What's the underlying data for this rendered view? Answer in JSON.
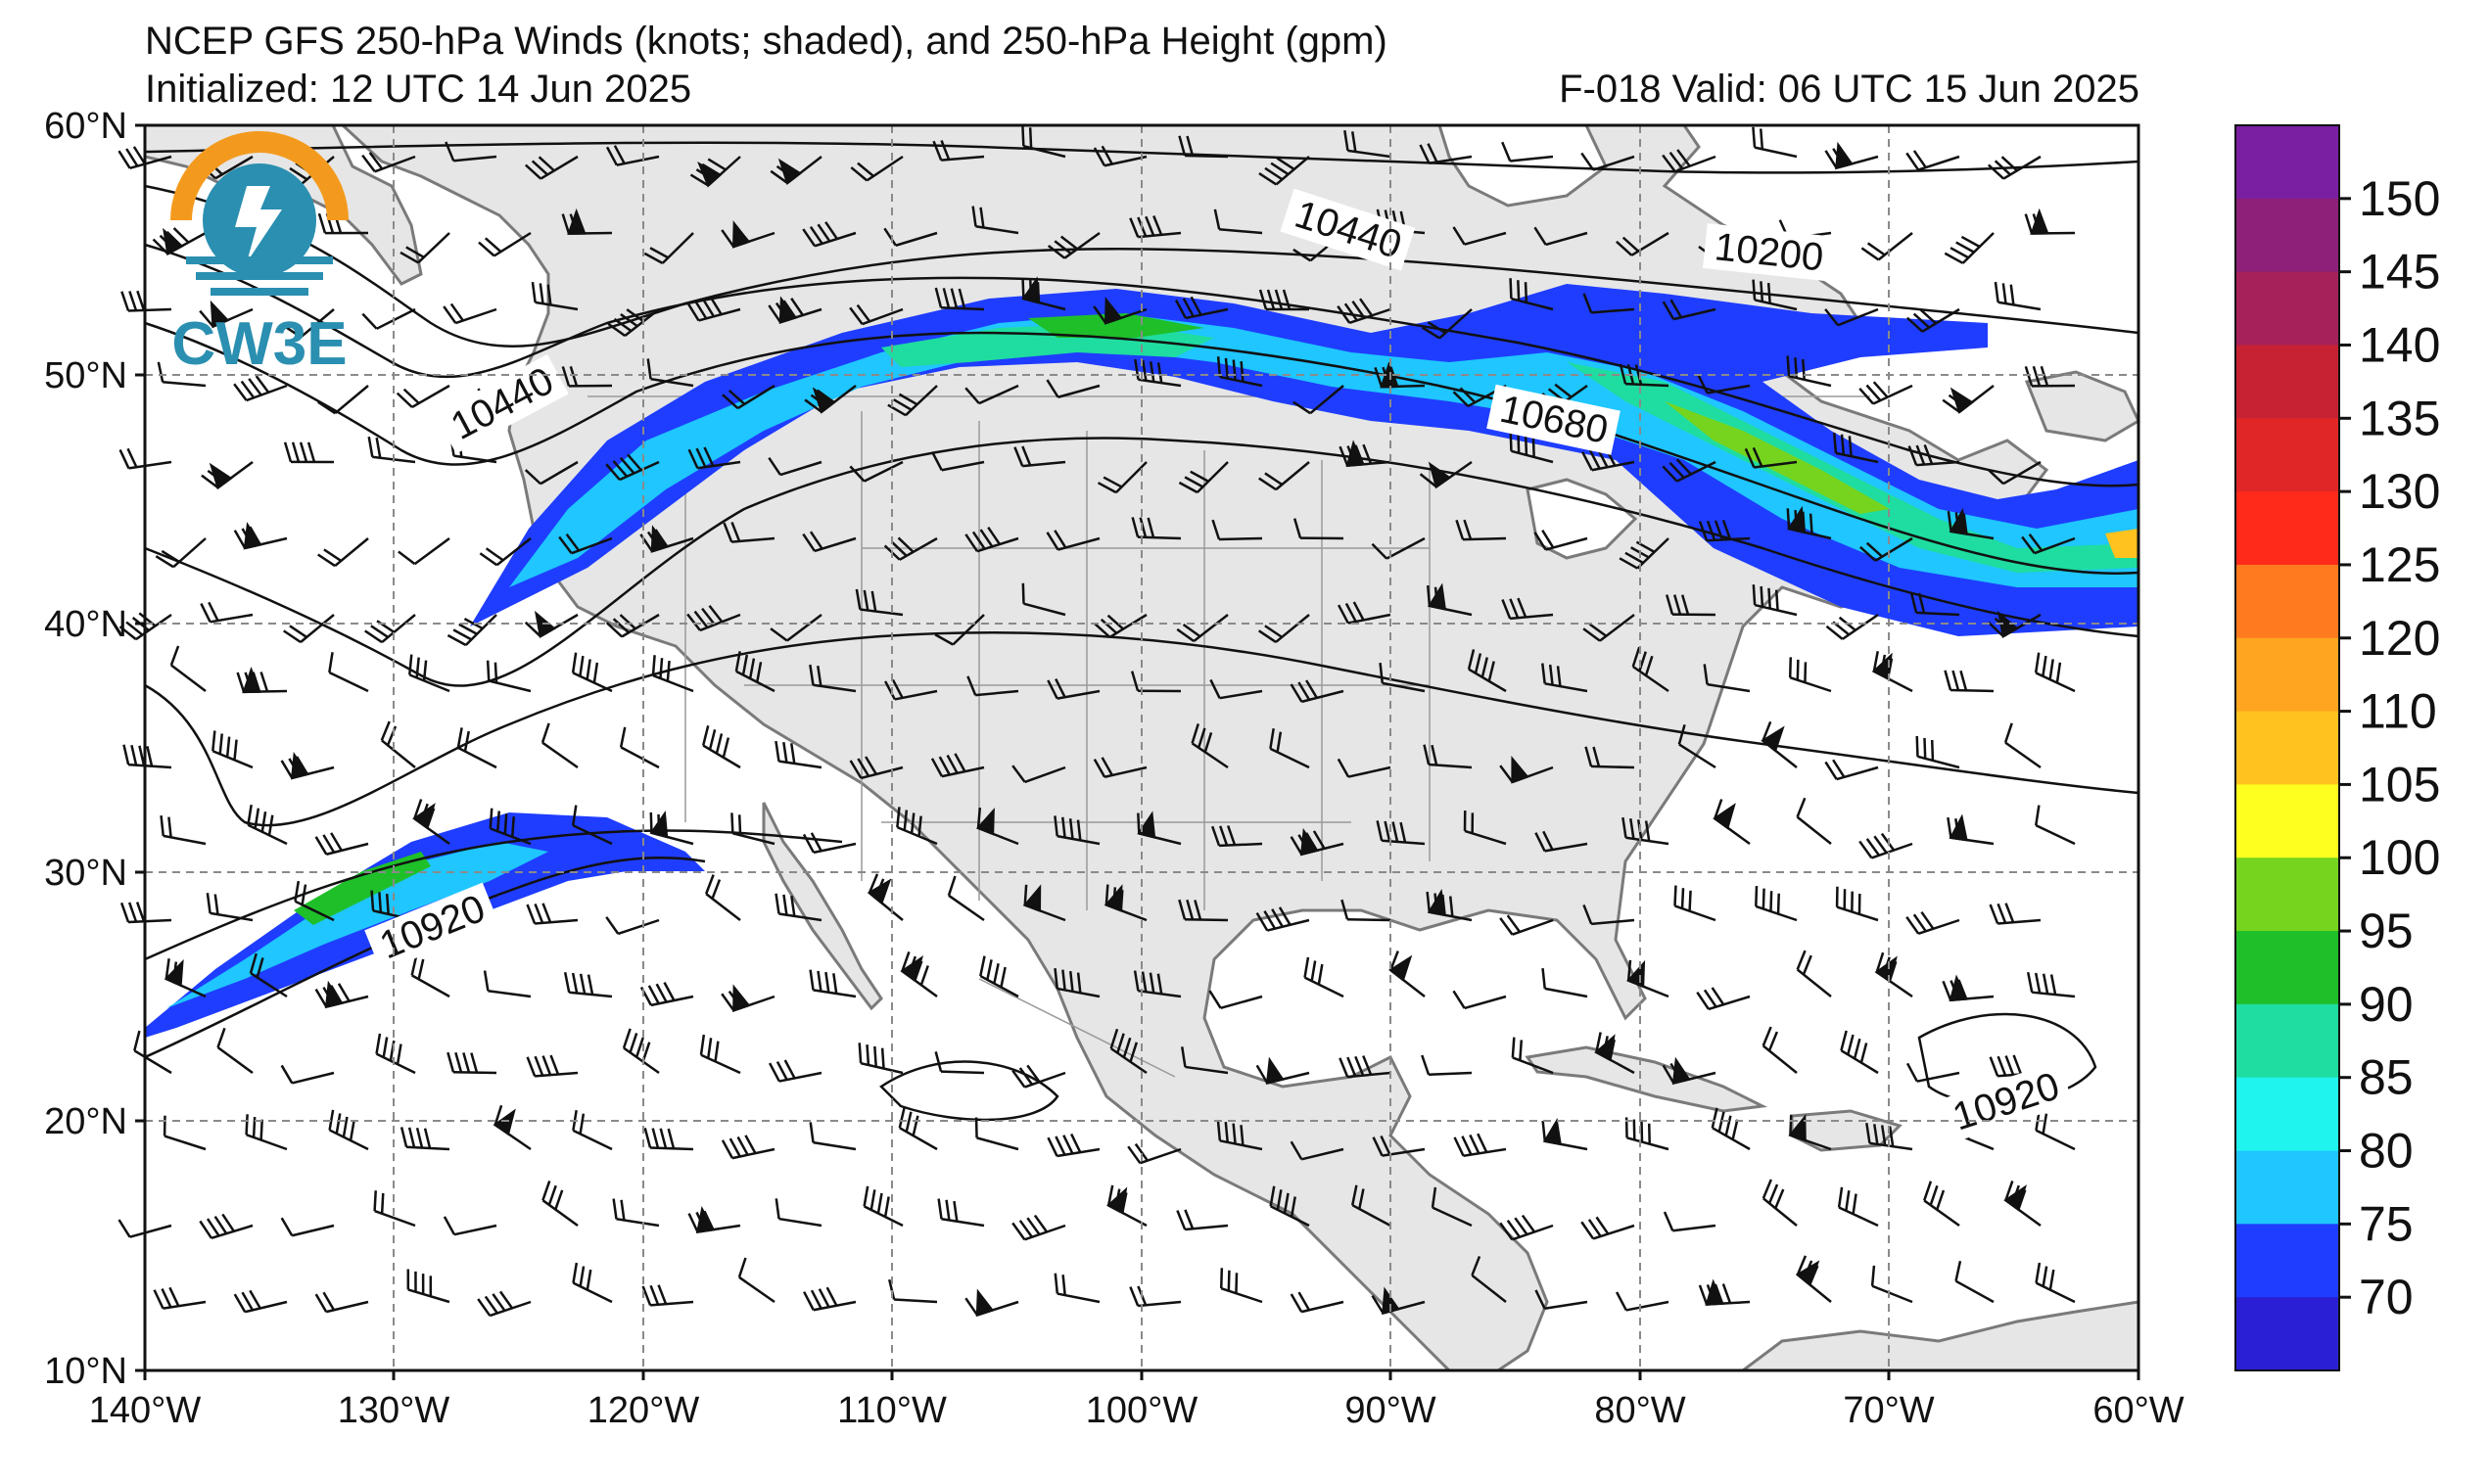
{
  "header": {
    "title": "NCEP GFS 250-hPa Winds (knots; shaded), and 250-hPa Height (gpm)",
    "initialized": "Initialized: 12 UTC 14 Jun 2025",
    "forecast": "F-018  Valid: 06 UTC 15 Jun 2025"
  },
  "logo": {
    "text": "CW3E"
  },
  "axes": {
    "lat_labels": [
      "60°N",
      "50°N",
      "40°N",
      "30°N",
      "20°N",
      "10°N"
    ],
    "lon_labels": [
      "140°W",
      "130°W",
      "120°W",
      "110°W",
      "100°W",
      "90°W",
      "80°W",
      "70°W",
      "60°W"
    ]
  },
  "contour_labels": [
    "10440",
    "10200",
    "10440",
    "10680",
    "10920",
    "10920"
  ],
  "colorbar": {
    "labels": [
      "150",
      "145",
      "140",
      "135",
      "130",
      "125",
      "120",
      "110",
      "105",
      "100",
      "95",
      "90",
      "85",
      "80",
      "75",
      "70"
    ],
    "colors": [
      "#7a1fa2",
      "#8e2079",
      "#a6205a",
      "#c62233",
      "#e02626",
      "#ff2a1a",
      "#ff7a1e",
      "#ffa51f",
      "#ffc21f",
      "#ffff1f",
      "#76d41e",
      "#1fbf2a",
      "#1fdda0",
      "#1ff5ee",
      "#1fc6ff",
      "#1f3dff",
      "#2a1fd4"
    ]
  },
  "map_style": {
    "land": "#e6e6e6",
    "ocean": "#ffffff",
    "coast": "#7a7a7a",
    "grid": "#8a8a8a"
  }
}
